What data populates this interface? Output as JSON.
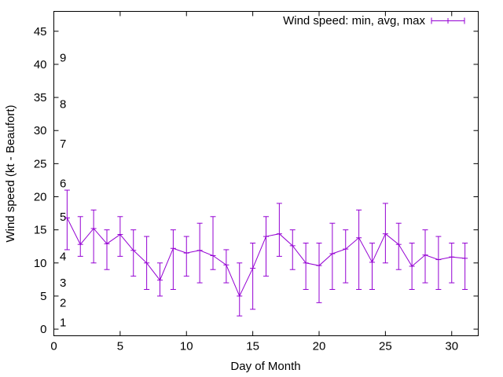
{
  "chart_data": {
    "type": "line",
    "title": "",
    "xlabel": "Day of Month",
    "ylabel": "Wind speed (kt - Beaufort)",
    "xlim": [
      0,
      32
    ],
    "ylim": [
      -1,
      48
    ],
    "xticks": [
      0,
      5,
      10,
      15,
      20,
      25,
      30
    ],
    "yticks": [
      0,
      5,
      10,
      15,
      20,
      25,
      30,
      35,
      40,
      45
    ],
    "grid": false,
    "legend_position": "top-right",
    "series": [
      {
        "name": "Wind speed: min, avg, max",
        "color": "#9400d3",
        "x": [
          1,
          2,
          3,
          4,
          5,
          6,
          7,
          8,
          9,
          10,
          11,
          12,
          13,
          14,
          15,
          16,
          17,
          18,
          19,
          20,
          21,
          22,
          23,
          24,
          25,
          26,
          27,
          28,
          29,
          30,
          31
        ],
        "avg": [
          16.8,
          12.8,
          15.2,
          12.9,
          14.3,
          11.9,
          10.0,
          7.4,
          12.2,
          11.5,
          11.9,
          11.1,
          9.7,
          5.0,
          9.2,
          14.0,
          14.4,
          12.6,
          10.0,
          9.6,
          11.4,
          12.1,
          13.8,
          10.1,
          14.4,
          12.8,
          9.5,
          11.2,
          10.5,
          10.9,
          10.7
        ],
        "min": [
          12,
          11,
          10,
          9,
          11,
          8,
          6,
          5,
          6,
          8,
          7,
          9,
          7,
          2,
          3,
          8,
          11,
          9,
          6,
          4,
          6,
          7,
          6,
          6,
          10,
          9,
          6,
          7,
          6,
          7,
          6
        ],
        "max": [
          21,
          17,
          18,
          15,
          17,
          15,
          14,
          10,
          15,
          14,
          16,
          17,
          12,
          10,
          13,
          17,
          19,
          15,
          13,
          13,
          16,
          15,
          18,
          13,
          19,
          16,
          13,
          15,
          14,
          13,
          13
        ]
      }
    ],
    "beaufort_labels": [
      {
        "label": "1",
        "y": 1
      },
      {
        "label": "2",
        "y": 4
      },
      {
        "label": "3",
        "y": 7
      },
      {
        "label": "4",
        "y": 11
      },
      {
        "label": "5",
        "y": 17
      },
      {
        "label": "6",
        "y": 22
      },
      {
        "label": "7",
        "y": 28
      },
      {
        "label": "8",
        "y": 34
      },
      {
        "label": "9",
        "y": 41
      }
    ]
  }
}
